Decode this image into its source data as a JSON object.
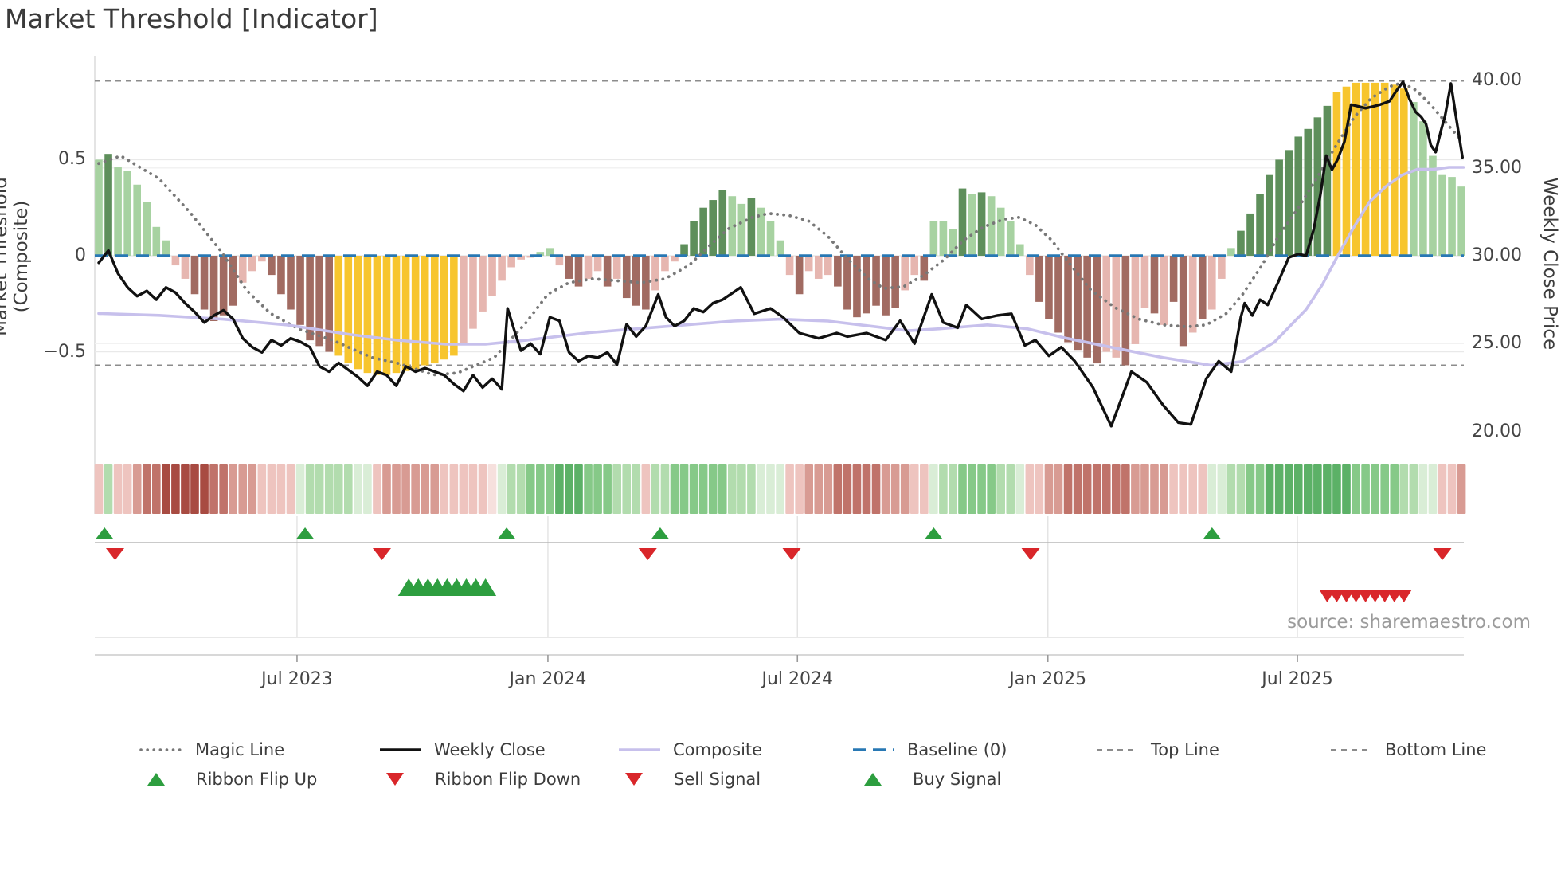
{
  "title": "Market Threshold [Indicator]",
  "source_note": "source: sharemaestro.com",
  "axes": {
    "left_label": "Market Threshold (Composite)",
    "right_label": "Weekly Close Price",
    "left_ticks": [
      {
        "label": "0.5",
        "v": 0.5
      },
      {
        "label": "0",
        "v": 0.0
      },
      {
        "label": "−0.5",
        "v": -0.5
      }
    ],
    "right_ticks": [
      {
        "label": "40.00",
        "p": 40
      },
      {
        "label": "35.00",
        "p": 35
      },
      {
        "label": "30.00",
        "p": 30
      },
      {
        "label": "25.00",
        "p": 25
      },
      {
        "label": "20.00",
        "p": 20
      }
    ],
    "x_ticks": [
      {
        "label": "Jul 2023",
        "i": 20.66
      },
      {
        "label": "Jan 2024",
        "i": 46.8
      },
      {
        "label": "Jul 2024",
        "i": 72.8
      },
      {
        "label": "Jan 2025",
        "i": 98.9
      },
      {
        "label": "Jul 2025",
        "i": 124.9
      }
    ]
  },
  "legend": {
    "row1": [
      {
        "label": "Magic Line",
        "type": "magic"
      },
      {
        "label": "Weekly Close",
        "type": "close"
      },
      {
        "label": "Composite",
        "type": "composite"
      },
      {
        "label": "Baseline (0)",
        "type": "baseline"
      },
      {
        "label": "Top Line",
        "type": "topline"
      },
      {
        "label": "Bottom Line",
        "type": "bottomline"
      }
    ],
    "row2": [
      {
        "label": "Ribbon Flip Up",
        "type": "flipup"
      },
      {
        "label": "Ribbon Flip Down",
        "type": "flipdown"
      },
      {
        "label": "Sell Signal",
        "type": "sell"
      },
      {
        "label": "Buy Signal",
        "type": "buy"
      }
    ]
  },
  "colors": {
    "bar_lgreen": "#a7d2a1",
    "bar_dgreen": "#5e8f5b",
    "bar_yellow": "#f7c52e",
    "bar_pink": "#e6b6b0",
    "bar_red": "#a16b62",
    "line_close": "#111111",
    "line_composite": "#c7c0ec",
    "line_magic": "#787878",
    "line_baseline": "#2878b4",
    "line_topbottom": "#8c8c8c",
    "grid": "#e9e9e9",
    "grid_faint": "#f2f2f2",
    "spine": "#d9d9d9",
    "marker_green": "#2d9e3f",
    "marker_red": "#d9262a",
    "sep_line": "#b8b8b8",
    "ribbon": {
      "-4": "#a84b42",
      "-3": "#c0736a",
      "-2": "#d89b93",
      "-1": "#eec4bf",
      "0": "#f6e0dd",
      "1": "#d9edd6",
      "2": "#b2dcae",
      "3": "#86c988",
      "4": "#5cb167"
    }
  },
  "chart_data": {
    "type": "bar",
    "subtype": "composite-indicator-with-price-overlay",
    "x_unit": "weeks (weekly bars, Feb 2023 – Oct 2025)",
    "ylim_left": [
      -0.75,
      1.0
    ],
    "ylim_right": [
      20,
      40
    ],
    "top_line_value": 0.91,
    "bottom_line_value": -0.57,
    "baseline_value": 0.0,
    "bar_values": [
      0.5,
      0.53,
      0.46,
      0.44,
      0.37,
      0.28,
      0.15,
      0.08,
      -0.05,
      -0.12,
      -0.2,
      -0.28,
      -0.34,
      -0.31,
      -0.26,
      -0.14,
      -0.08,
      -0.03,
      -0.1,
      -0.2,
      -0.28,
      -0.36,
      -0.44,
      -0.47,
      -0.5,
      -0.52,
      -0.56,
      -0.59,
      -0.61,
      -0.62,
      -0.62,
      -0.61,
      -0.6,
      -0.59,
      -0.57,
      -0.56,
      -0.54,
      -0.52,
      -0.46,
      -0.38,
      -0.29,
      -0.21,
      -0.13,
      -0.06,
      -0.02,
      -0.01,
      0.02,
      0.04,
      -0.05,
      -0.12,
      -0.16,
      -0.12,
      -0.08,
      -0.16,
      -0.12,
      -0.22,
      -0.26,
      -0.28,
      -0.18,
      -0.08,
      -0.03,
      0.06,
      0.18,
      0.25,
      0.29,
      0.34,
      0.31,
      0.27,
      0.3,
      0.25,
      0.18,
      0.08,
      -0.1,
      -0.2,
      -0.08,
      -0.12,
      -0.1,
      -0.16,
      -0.28,
      -0.32,
      -0.3,
      -0.26,
      -0.31,
      -0.27,
      -0.18,
      -0.1,
      -0.13,
      0.18,
      0.18,
      0.14,
      0.35,
      0.32,
      0.33,
      0.31,
      0.25,
      0.18,
      0.06,
      -0.1,
      -0.24,
      -0.33,
      -0.4,
      -0.45,
      -0.49,
      -0.53,
      -0.56,
      -0.5,
      -0.53,
      -0.57,
      -0.46,
      -0.27,
      -0.3,
      -0.36,
      -0.24,
      -0.47,
      -0.4,
      -0.33,
      -0.28,
      -0.12,
      0.04,
      0.13,
      0.22,
      0.32,
      0.42,
      0.5,
      0.55,
      0.62,
      0.66,
      0.72,
      0.78,
      0.85,
      0.88,
      0.9,
      0.9,
      0.9,
      0.9,
      0.89,
      0.87,
      0.8,
      0.7,
      0.52,
      0.42,
      0.41,
      0.36
    ],
    "bar_colors": [
      "l",
      "d",
      "l",
      "l",
      "l",
      "l",
      "l",
      "l",
      "p",
      "p",
      "r",
      "r",
      "r",
      "r",
      "r",
      "p",
      "p",
      "p",
      "r",
      "r",
      "r",
      "r",
      "r",
      "r",
      "r",
      "y",
      "y",
      "y",
      "y",
      "y",
      "y",
      "y",
      "y",
      "y",
      "y",
      "y",
      "y",
      "y",
      "p",
      "p",
      "p",
      "p",
      "p",
      "p",
      "p",
      "p",
      "l",
      "l",
      "p",
      "r",
      "r",
      "p",
      "p",
      "r",
      "p",
      "r",
      "r",
      "r",
      "p",
      "p",
      "p",
      "d",
      "d",
      "d",
      "d",
      "d",
      "l",
      "l",
      "d",
      "l",
      "l",
      "l",
      "p",
      "r",
      "p",
      "p",
      "p",
      "r",
      "r",
      "r",
      "r",
      "r",
      "r",
      "r",
      "p",
      "p",
      "r",
      "l",
      "l",
      "l",
      "d",
      "l",
      "d",
      "l",
      "l",
      "l",
      "l",
      "p",
      "r",
      "r",
      "r",
      "r",
      "r",
      "r",
      "r",
      "p",
      "p",
      "r",
      "p",
      "p",
      "r",
      "p",
      "r",
      "r",
      "p",
      "r",
      "p",
      "p",
      "l",
      "d",
      "d",
      "d",
      "d",
      "d",
      "d",
      "d",
      "d",
      "d",
      "d",
      "y",
      "y",
      "y",
      "y",
      "y",
      "y",
      "y",
      "y",
      "l",
      "l",
      "l",
      "l",
      "l",
      "l"
    ],
    "ribbon_levels": [
      -1,
      2,
      -1,
      -1,
      -2,
      -3,
      -3,
      -4,
      -4,
      -4,
      -4,
      -4,
      -3,
      -3,
      -2,
      -2,
      -2,
      -1,
      -1,
      -1,
      -1,
      1,
      2,
      2,
      2,
      2,
      2,
      1,
      1,
      -1,
      -2,
      -2,
      -2,
      -2,
      -2,
      -2,
      -1,
      -1,
      -1,
      -1,
      -1,
      0,
      1,
      2,
      2,
      3,
      3,
      3,
      4,
      4,
      4,
      3,
      3,
      3,
      2,
      2,
      2,
      -1,
      2,
      2,
      3,
      3,
      3,
      3,
      3,
      3,
      2,
      2,
      2,
      1,
      1,
      1,
      -1,
      -1,
      -2,
      -2,
      -2,
      -3,
      -3,
      -3,
      -3,
      -3,
      -2,
      -2,
      -2,
      -1,
      -1,
      1,
      2,
      2,
      3,
      3,
      3,
      3,
      2,
      2,
      1,
      -1,
      -1,
      -2,
      -2,
      -3,
      -3,
      -3,
      -3,
      -3,
      -3,
      -3,
      -2,
      -2,
      -2,
      -2,
      -1,
      -1,
      -1,
      -1,
      1,
      1,
      2,
      2,
      3,
      3,
      4,
      4,
      4,
      4,
      4,
      4,
      4,
      4,
      4,
      3,
      3,
      3,
      3,
      3,
      2,
      2,
      1,
      1,
      -1,
      -1,
      -2
    ],
    "weekly_close": [
      [
        0,
        29.6
      ],
      [
        1,
        30.3
      ],
      [
        2,
        29.0
      ],
      [
        3,
        28.2
      ],
      [
        4,
        27.7
      ],
      [
        5,
        28.0
      ],
      [
        6,
        27.5
      ],
      [
        7,
        28.2
      ],
      [
        8,
        27.9
      ],
      [
        9,
        27.3
      ],
      [
        10,
        26.8
      ],
      [
        11,
        26.2
      ],
      [
        12,
        26.6
      ],
      [
        13,
        26.9
      ],
      [
        14,
        26.4
      ],
      [
        15,
        25.3
      ],
      [
        16,
        24.8
      ],
      [
        17,
        24.5
      ],
      [
        18,
        25.2
      ],
      [
        19,
        24.9
      ],
      [
        20,
        25.3
      ],
      [
        21,
        25.1
      ],
      [
        22,
        24.8
      ],
      [
        23,
        23.7
      ],
      [
        24,
        23.4
      ],
      [
        25,
        23.9
      ],
      [
        26,
        23.5
      ],
      [
        27,
        23.1
      ],
      [
        28,
        22.6
      ],
      [
        29,
        23.4
      ],
      [
        30,
        23.2
      ],
      [
        31,
        22.6
      ],
      [
        32,
        23.7
      ],
      [
        33,
        23.4
      ],
      [
        34,
        23.6
      ],
      [
        35,
        23.4
      ],
      [
        36,
        23.2
      ],
      [
        37,
        22.7
      ],
      [
        38,
        22.3
      ],
      [
        39,
        23.2
      ],
      [
        40,
        22.5
      ],
      [
        41,
        23.0
      ],
      [
        42,
        22.4
      ],
      [
        42.6,
        27.0
      ],
      [
        43.5,
        25.4
      ],
      [
        44,
        24.6
      ],
      [
        45,
        25.0
      ],
      [
        46,
        24.4
      ],
      [
        47,
        26.5
      ],
      [
        48,
        26.3
      ],
      [
        49,
        24.5
      ],
      [
        50,
        24.0
      ],
      [
        51,
        24.3
      ],
      [
        52,
        24.2
      ],
      [
        53,
        24.5
      ],
      [
        54,
        23.8
      ],
      [
        55,
        26.1
      ],
      [
        56,
        25.4
      ],
      [
        57,
        26.0
      ],
      [
        58.3,
        27.8
      ],
      [
        59.1,
        26.5
      ],
      [
        60,
        26.0
      ],
      [
        61,
        26.3
      ],
      [
        62,
        27.0
      ],
      [
        63,
        26.8
      ],
      [
        64,
        27.3
      ],
      [
        65,
        27.5
      ],
      [
        66.9,
        28.2
      ],
      [
        68.3,
        26.7
      ],
      [
        70,
        27.0
      ],
      [
        71.3,
        26.5
      ],
      [
        73,
        25.6
      ],
      [
        75,
        25.3
      ],
      [
        76.9,
        25.6
      ],
      [
        78,
        25.4
      ],
      [
        80,
        25.6
      ],
      [
        82,
        25.2
      ],
      [
        83.5,
        26.3
      ],
      [
        85,
        25.0
      ],
      [
        86.8,
        27.8
      ],
      [
        88,
        26.2
      ],
      [
        89.5,
        25.9
      ],
      [
        90.4,
        27.2
      ],
      [
        92,
        26.4
      ],
      [
        93.6,
        26.6
      ],
      [
        95.1,
        26.7
      ],
      [
        96.5,
        24.9
      ],
      [
        97.6,
        25.2
      ],
      [
        99,
        24.3
      ],
      [
        100.3,
        24.8
      ],
      [
        101.7,
        24.0
      ],
      [
        103.6,
        22.5
      ],
      [
        105.5,
        20.3
      ],
      [
        107.6,
        23.4
      ],
      [
        109.2,
        22.8
      ],
      [
        110.9,
        21.5
      ],
      [
        112.5,
        20.5
      ],
      [
        113.8,
        20.4
      ],
      [
        115.4,
        23.0
      ],
      [
        116.7,
        24.0
      ],
      [
        118,
        23.4
      ],
      [
        119,
        26.5
      ],
      [
        119.4,
        27.3
      ],
      [
        120.2,
        26.6
      ],
      [
        121,
        27.5
      ],
      [
        121.8,
        27.2
      ],
      [
        122.9,
        28.5
      ],
      [
        124,
        29.9
      ],
      [
        125,
        30.1
      ],
      [
        125.8,
        30.0
      ],
      [
        126.6,
        31.5
      ],
      [
        127.3,
        33.5
      ],
      [
        127.9,
        35.7
      ],
      [
        128.5,
        34.9
      ],
      [
        129.1,
        35.5
      ],
      [
        129.8,
        36.5
      ],
      [
        130.5,
        38.6
      ],
      [
        131.3,
        38.5
      ],
      [
        132,
        38.4
      ],
      [
        132.8,
        38.5
      ],
      [
        133.5,
        38.6
      ],
      [
        134.5,
        38.8
      ],
      [
        135.1,
        39.3
      ],
      [
        135.9,
        39.9
      ],
      [
        136.6,
        38.9
      ],
      [
        137.2,
        38.2
      ],
      [
        137.8,
        37.9
      ],
      [
        138.3,
        37.5
      ],
      [
        138.8,
        36.3
      ],
      [
        139.3,
        35.9
      ],
      [
        139.9,
        37.2
      ],
      [
        140.3,
        38.0
      ],
      [
        140.9,
        39.8
      ],
      [
        141.4,
        38.0
      ],
      [
        142.1,
        35.6
      ]
    ],
    "composite_line": [
      [
        0,
        -0.3
      ],
      [
        6.3,
        -0.31
      ],
      [
        12.9,
        -0.33
      ],
      [
        19.6,
        -0.36
      ],
      [
        26.2,
        -0.41
      ],
      [
        31.2,
        -0.44
      ],
      [
        36.2,
        -0.46
      ],
      [
        40.3,
        -0.46
      ],
      [
        44.5,
        -0.44
      ],
      [
        47.8,
        -0.42
      ],
      [
        51.1,
        -0.4
      ],
      [
        56.1,
        -0.38
      ],
      [
        61.1,
        -0.36
      ],
      [
        66.1,
        -0.34
      ],
      [
        71,
        -0.33
      ],
      [
        76,
        -0.34
      ],
      [
        81,
        -0.37
      ],
      [
        84.3,
        -0.39
      ],
      [
        87.6,
        -0.38
      ],
      [
        92.6,
        -0.36
      ],
      [
        96.8,
        -0.38
      ],
      [
        100.9,
        -0.43
      ],
      [
        105.9,
        -0.48
      ],
      [
        110.9,
        -0.53
      ],
      [
        115.9,
        -0.57
      ],
      [
        119.2,
        -0.55
      ],
      [
        122.5,
        -0.45
      ],
      [
        125.8,
        -0.28
      ],
      [
        127.5,
        -0.15
      ],
      [
        129.1,
        0.0
      ],
      [
        130.8,
        0.15
      ],
      [
        132.4,
        0.28
      ],
      [
        134.1,
        0.36
      ],
      [
        135.8,
        0.42
      ],
      [
        137.4,
        0.45
      ],
      [
        139.1,
        0.45
      ],
      [
        140.7,
        0.46
      ],
      [
        142.2,
        0.46
      ]
    ],
    "magic_line": [
      [
        0,
        0.48
      ],
      [
        2.3,
        0.52
      ],
      [
        6.3,
        0.4
      ],
      [
        9.6,
        0.22
      ],
      [
        12.8,
        0.02
      ],
      [
        15.4,
        -0.18
      ],
      [
        17.9,
        -0.3
      ],
      [
        20.8,
        -0.38
      ],
      [
        24.4,
        -0.44
      ],
      [
        27.1,
        -0.5
      ],
      [
        28.5,
        -0.53
      ],
      [
        31.2,
        -0.56
      ],
      [
        34.9,
        -0.62
      ],
      [
        37.4,
        -0.61
      ],
      [
        41.2,
        -0.53
      ],
      [
        44.5,
        -0.35
      ],
      [
        46.8,
        -0.2
      ],
      [
        49,
        -0.14
      ],
      [
        51.5,
        -0.12
      ],
      [
        54,
        -0.13
      ],
      [
        56.5,
        -0.14
      ],
      [
        59,
        -0.12
      ],
      [
        61.5,
        -0.05
      ],
      [
        63.6,
        0.05
      ],
      [
        65.6,
        0.14
      ],
      [
        68.1,
        0.2
      ],
      [
        69.8,
        0.22
      ],
      [
        71.9,
        0.21
      ],
      [
        74,
        0.18
      ],
      [
        76,
        0.1
      ],
      [
        78.1,
        -0.02
      ],
      [
        80.2,
        -0.12
      ],
      [
        81.8,
        -0.17
      ],
      [
        83.9,
        -0.16
      ],
      [
        86,
        -0.1
      ],
      [
        88.1,
        -0.02
      ],
      [
        90.1,
        0.08
      ],
      [
        92.2,
        0.15
      ],
      [
        94.3,
        0.19
      ],
      [
        95.9,
        0.2
      ],
      [
        97.6,
        0.16
      ],
      [
        99.3,
        0.08
      ],
      [
        101.3,
        -0.05
      ],
      [
        103.4,
        -0.18
      ],
      [
        105.9,
        -0.27
      ],
      [
        108.4,
        -0.33
      ],
      [
        110.9,
        -0.36
      ],
      [
        113.4,
        -0.37
      ],
      [
        115.4,
        -0.36
      ],
      [
        117.5,
        -0.3
      ],
      [
        119.2,
        -0.2
      ],
      [
        121.2,
        -0.05
      ],
      [
        122.9,
        0.1
      ],
      [
        125,
        0.25
      ],
      [
        127.1,
        0.42
      ],
      [
        129,
        0.58
      ],
      [
        130.8,
        0.72
      ],
      [
        132.6,
        0.82
      ],
      [
        134.5,
        0.88
      ],
      [
        135.8,
        0.9
      ],
      [
        137.3,
        0.86
      ],
      [
        138.9,
        0.78
      ],
      [
        140.6,
        0.68
      ],
      [
        142,
        0.6
      ]
    ],
    "ribbon_flip_up_weeks": [
      0.6,
      21.5,
      42.5,
      58.5,
      87.0,
      116.0
    ],
    "ribbon_flip_down_weeks": [
      1.7,
      29.5,
      57.2,
      72.2,
      97.1,
      140.0
    ],
    "buy_signal_weeks": [
      32.3,
      33.3,
      34.3,
      35.3,
      36.3,
      37.3,
      38.3,
      39.3,
      40.3
    ],
    "sell_signal_weeks": [
      128,
      129,
      130,
      131,
      132,
      133,
      134,
      135,
      136
    ]
  }
}
